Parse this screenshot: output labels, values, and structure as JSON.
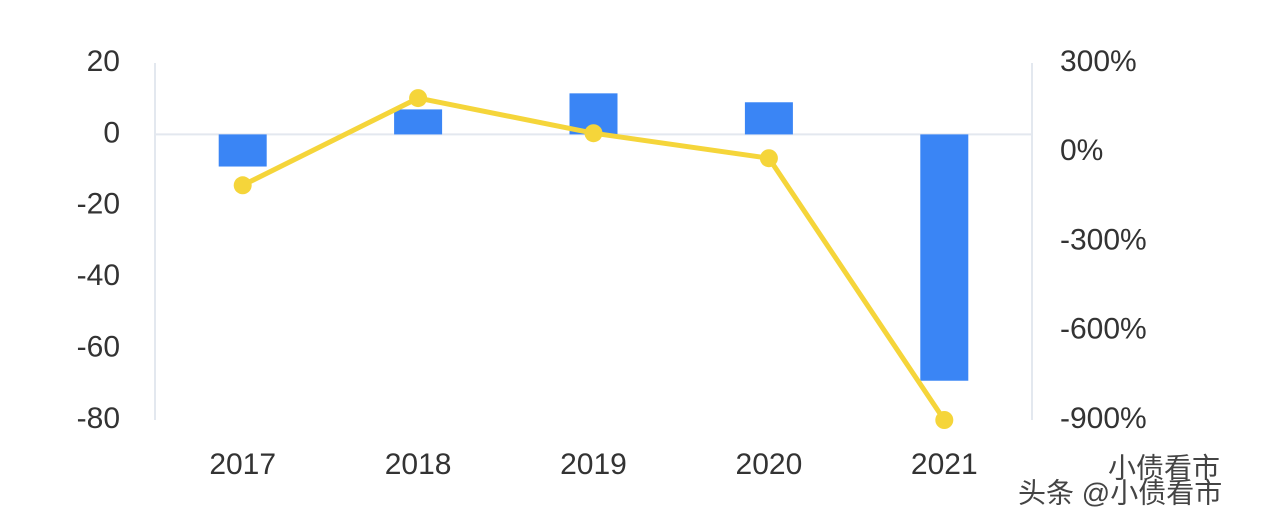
{
  "chart_data": {
    "type": "bar-line",
    "categories": [
      "2017",
      "2018",
      "2019",
      "2020",
      "2021"
    ],
    "series": [
      {
        "type": "bar",
        "color": "#3a85f5",
        "values": [
          -9,
          7,
          11.5,
          9,
          -69
        ]
      },
      {
        "type": "line",
        "axis": "y2",
        "color": "#f5d53a",
        "values": [
          -111,
          182,
          64,
          -20,
          -900
        ]
      }
    ],
    "ylim": [
      -80,
      20
    ],
    "yticks": [
      20,
      0,
      -20,
      -40,
      -60,
      -80
    ],
    "y2lim": [
      -900,
      300
    ],
    "y2ticks": [
      {
        "value": 300,
        "label": "300%"
      },
      {
        "value": 0,
        "label": "0%"
      },
      {
        "value": -300,
        "label": "-300%"
      },
      {
        "value": -600,
        "label": "-600%"
      },
      {
        "value": -900,
        "label": "-900%"
      }
    ],
    "watermark": [
      "小债看市",
      "头条 @小债看市"
    ]
  }
}
